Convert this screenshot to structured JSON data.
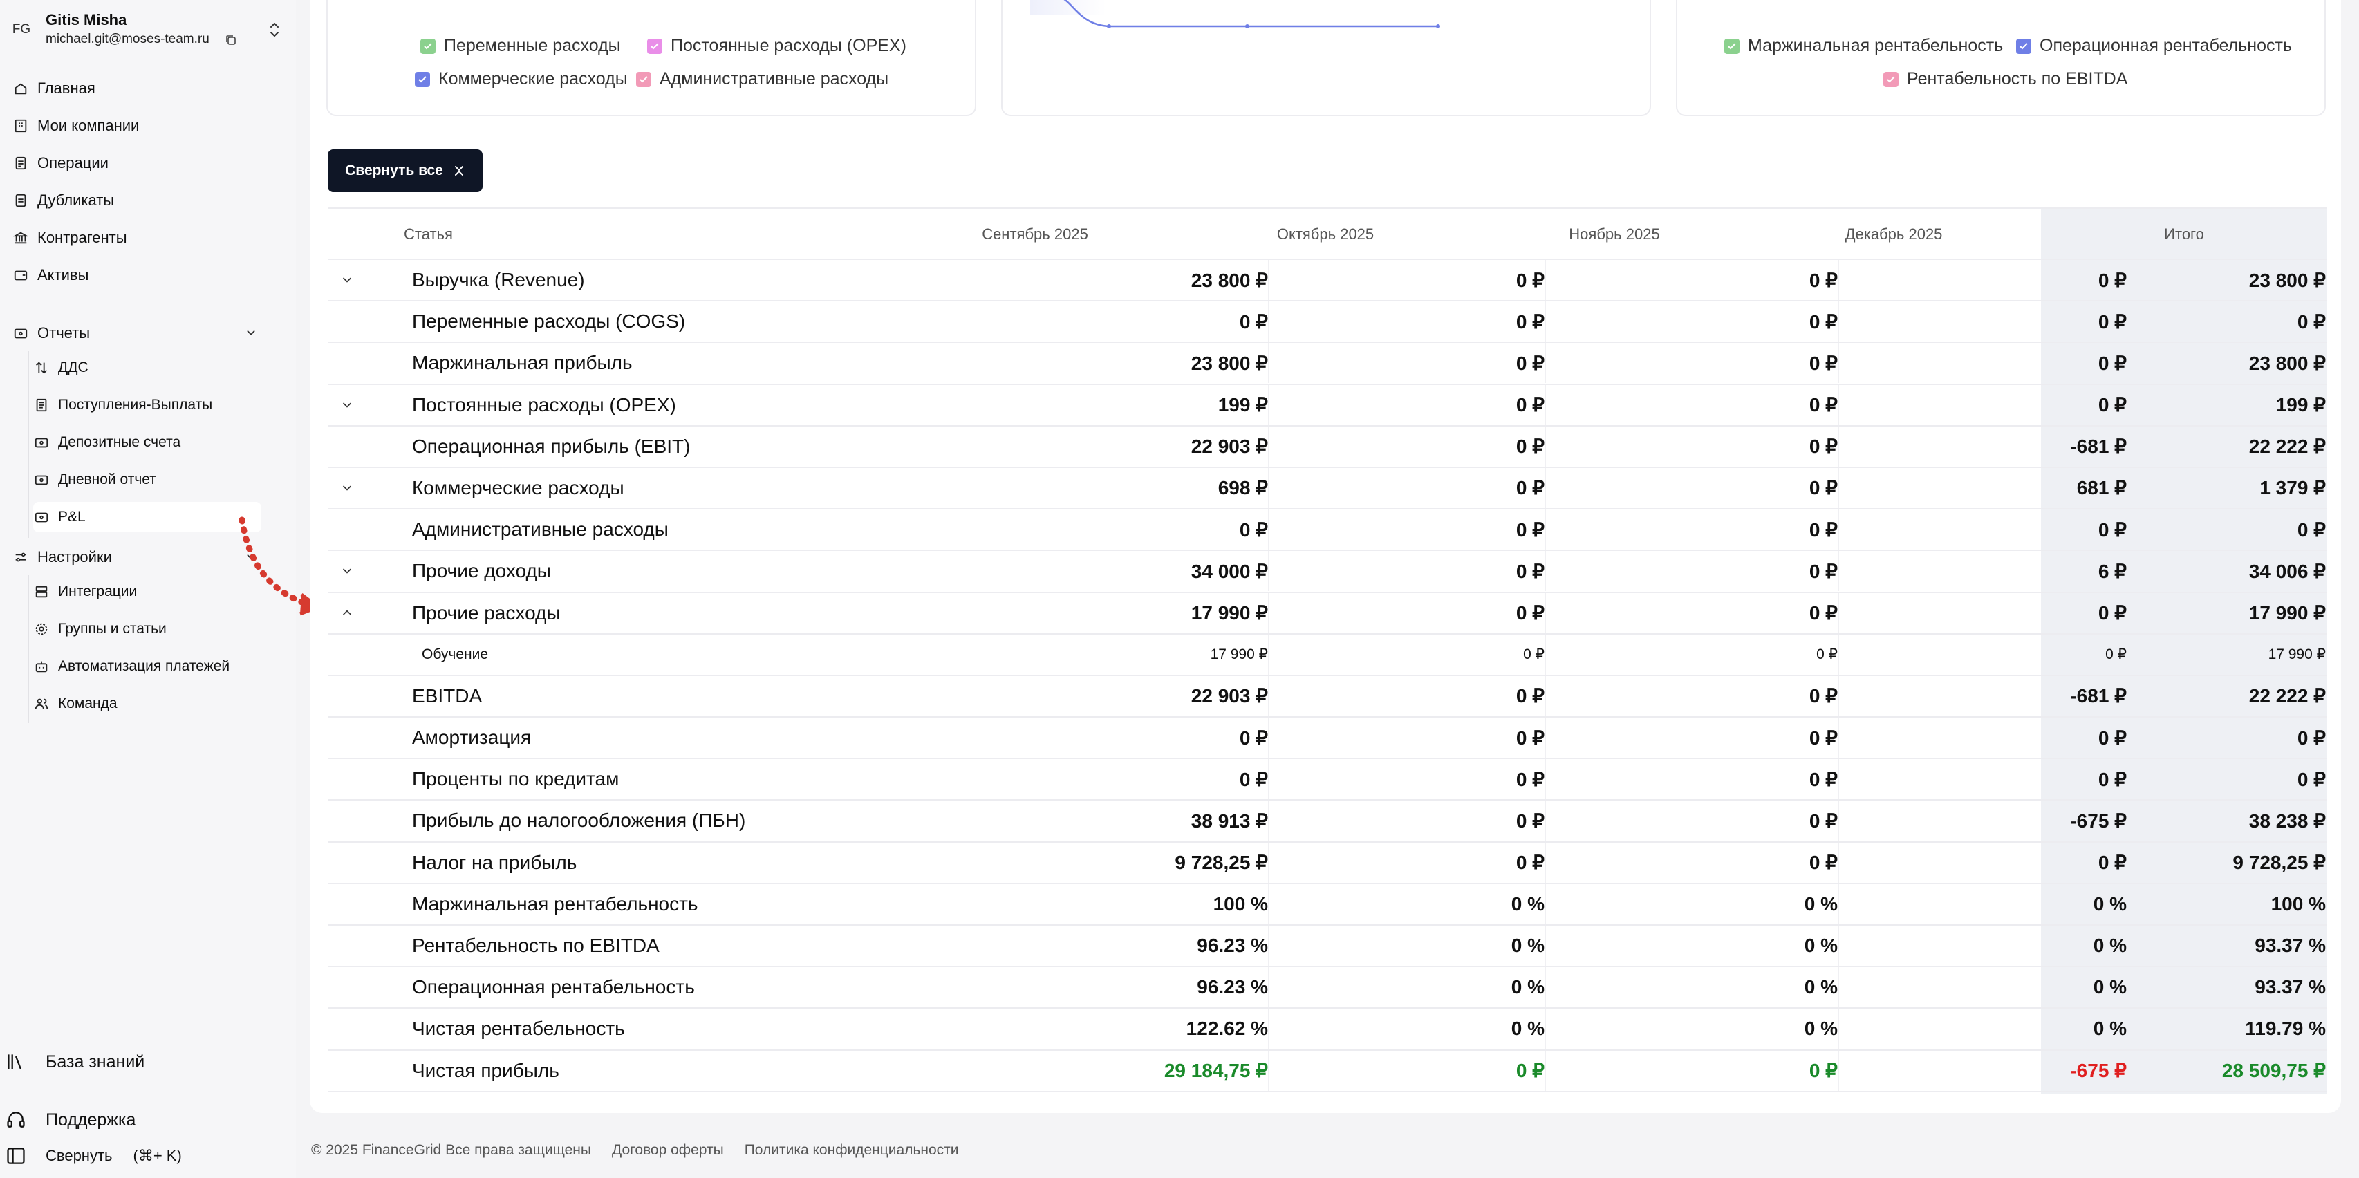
{
  "user": {
    "initials": "FG",
    "name": "Gitis Misha",
    "email": "michael.git@moses-team.ru"
  },
  "sidebar": {
    "items": [
      {
        "label": "Главная",
        "icon": "home-icon"
      },
      {
        "label": "Мои компании",
        "icon": "building-icon"
      },
      {
        "label": "Операции",
        "icon": "document-icon"
      },
      {
        "label": "Дубликаты",
        "icon": "duplicate-icon"
      },
      {
        "label": "Контрагенты",
        "icon": "bank-icon"
      },
      {
        "label": "Активы",
        "icon": "wallet-icon"
      }
    ],
    "reports": {
      "label": "Отчеты",
      "children": [
        {
          "label": "ДДС",
          "icon": "sort-arrows-icon"
        },
        {
          "label": "Поступления-Выплаты",
          "icon": "receipt-icon"
        },
        {
          "label": "Депозитные счета",
          "icon": "card-icon"
        },
        {
          "label": "Дневной отчет",
          "icon": "card-icon"
        },
        {
          "label": "P&L",
          "icon": "card-icon"
        }
      ]
    },
    "settings": {
      "label": "Настройки",
      "children": [
        {
          "label": "Интеграции",
          "icon": "server-icon"
        },
        {
          "label": "Группы и статьи",
          "icon": "gear-icon"
        },
        {
          "label": "Автоматизация платежей",
          "icon": "bot-icon"
        },
        {
          "label": "Команда",
          "icon": "users-icon"
        }
      ]
    },
    "knowledge_base": "База знаний",
    "support": "Поддержка",
    "collapse": "Свернуть",
    "collapse_shortcut": "(⌘+ K)"
  },
  "legends": {
    "left": [
      {
        "label": "Переменные расходы",
        "color": "#8bd18e"
      },
      {
        "label": "Постоянные расходы (OPEX)",
        "color": "#e98ee8"
      },
      {
        "label": "Коммерческие расходы",
        "color": "#6f7fe6"
      },
      {
        "label": "Административные расходы",
        "color": "#f29ab7"
      }
    ],
    "right": [
      {
        "label": "Маржинальная рентабельность",
        "color": "#8bd18e"
      },
      {
        "label": "Операционная рентабельность",
        "color": "#6f7fe6"
      },
      {
        "label": "Рентабельность по EBITDA",
        "color": "#f29ab7"
      }
    ]
  },
  "collapse_all_label": "Свернуть все",
  "table": {
    "columns": [
      "Статья",
      "Сентябрь 2025",
      "Октябрь 2025",
      "Ноябрь 2025",
      "Декабрь 2025",
      "Итого"
    ],
    "rows": [
      {
        "label": "Выручка (Revenue)",
        "chevron": "down",
        "values": [
          "23 800 ₽",
          "0 ₽",
          "0 ₽",
          "0 ₽",
          "23 800 ₽"
        ]
      },
      {
        "label": "Переменные расходы (COGS)",
        "chevron": "",
        "values": [
          "0 ₽",
          "0 ₽",
          "0 ₽",
          "0 ₽",
          "0 ₽"
        ]
      },
      {
        "label": "Маржинальная прибыль",
        "chevron": "",
        "values": [
          "23 800 ₽",
          "0 ₽",
          "0 ₽",
          "0 ₽",
          "23 800 ₽"
        ]
      },
      {
        "label": "Постоянные расходы (OPEX)",
        "chevron": "down",
        "values": [
          "199 ₽",
          "0 ₽",
          "0 ₽",
          "0 ₽",
          "199 ₽"
        ]
      },
      {
        "label": "Операционная прибыль (EBIT)",
        "chevron": "",
        "values": [
          "22 903 ₽",
          "0 ₽",
          "0 ₽",
          "-681 ₽",
          "22 222 ₽"
        ]
      },
      {
        "label": "Коммерческие расходы",
        "chevron": "down",
        "values": [
          "698 ₽",
          "0 ₽",
          "0 ₽",
          "681 ₽",
          "1 379 ₽"
        ]
      },
      {
        "label": "Административные расходы",
        "chevron": "",
        "values": [
          "0 ₽",
          "0 ₽",
          "0 ₽",
          "0 ₽",
          "0 ₽"
        ]
      },
      {
        "label": "Прочие доходы",
        "chevron": "down",
        "values": [
          "34 000 ₽",
          "0 ₽",
          "0 ₽",
          "6 ₽",
          "34 006 ₽"
        ]
      },
      {
        "label": "Прочие расходы",
        "chevron": "up",
        "values": [
          "17 990 ₽",
          "0 ₽",
          "0 ₽",
          "0 ₽",
          "17 990 ₽"
        ]
      },
      {
        "label": "Обучение",
        "chevron": "",
        "child": true,
        "values": [
          "17 990 ₽",
          "0 ₽",
          "0 ₽",
          "0 ₽",
          "17 990 ₽"
        ]
      },
      {
        "label": "EBITDA",
        "chevron": "",
        "values": [
          "22 903 ₽",
          "0 ₽",
          "0 ₽",
          "-681 ₽",
          "22 222 ₽"
        ]
      },
      {
        "label": "Амортизация",
        "chevron": "",
        "values": [
          "0 ₽",
          "0 ₽",
          "0 ₽",
          "0 ₽",
          "0 ₽"
        ]
      },
      {
        "label": "Проценты по кредитам",
        "chevron": "",
        "values": [
          "0 ₽",
          "0 ₽",
          "0 ₽",
          "0 ₽",
          "0 ₽"
        ]
      },
      {
        "label": "Прибыль до налогообложения (ПБН)",
        "chevron": "",
        "values": [
          "38 913 ₽",
          "0 ₽",
          "0 ₽",
          "-675 ₽",
          "38 238 ₽"
        ]
      },
      {
        "label": "Налог на прибыль",
        "chevron": "",
        "values": [
          "9 728,25 ₽",
          "0 ₽",
          "0 ₽",
          "0 ₽",
          "9 728,25 ₽"
        ]
      },
      {
        "label": "Маржинальная рентабельность",
        "chevron": "",
        "values": [
          "100 %",
          "0 %",
          "0 %",
          "0 %",
          "100 %"
        ]
      },
      {
        "label": "Рентабельность по EBITDA",
        "chevron": "",
        "values": [
          "96.23 %",
          "0 %",
          "0 %",
          "0 %",
          "93.37 %"
        ]
      },
      {
        "label": "Операционная рентабельность",
        "chevron": "",
        "values": [
          "96.23 %",
          "0 %",
          "0 %",
          "0 %",
          "93.37 %"
        ]
      },
      {
        "label": "Чистая рентабельность",
        "chevron": "",
        "values": [
          "122.62 %",
          "0 %",
          "0 %",
          "0 %",
          "119.79 %"
        ]
      },
      {
        "label": "Чистая прибыль",
        "chevron": "",
        "net": true,
        "value_colors": [
          "green",
          "green",
          "green",
          "red",
          "green"
        ],
        "values": [
          "29 184,75 ₽",
          "0 ₽",
          "0 ₽",
          "-675 ₽",
          "28 509,75 ₽"
        ]
      }
    ]
  },
  "footer": {
    "copyright": "© 2025 FinanceGrid Все права защищены",
    "offer": "Договор оферты",
    "privacy": "Политика конфиденциальности"
  }
}
